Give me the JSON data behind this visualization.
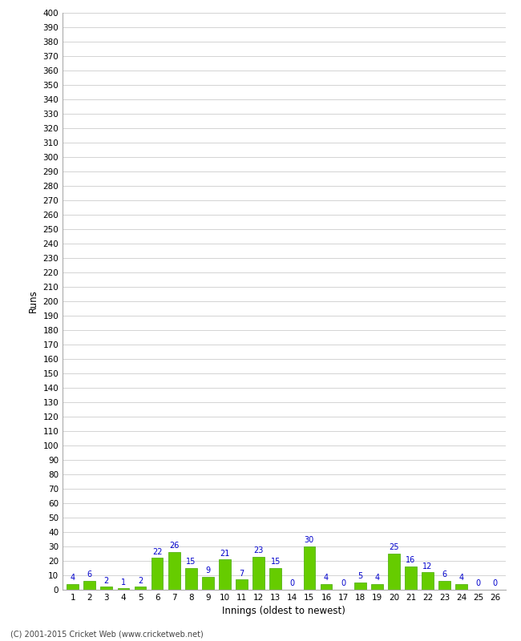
{
  "innings": [
    1,
    2,
    3,
    4,
    5,
    6,
    7,
    8,
    9,
    10,
    11,
    12,
    13,
    14,
    15,
    16,
    17,
    18,
    19,
    20,
    21,
    22,
    23,
    24,
    25,
    26
  ],
  "runs": [
    4,
    6,
    2,
    1,
    2,
    22,
    26,
    15,
    9,
    21,
    7,
    23,
    15,
    0,
    30,
    4,
    0,
    5,
    4,
    25,
    16,
    12,
    6,
    4,
    0,
    0
  ],
  "bar_color": "#66cc00",
  "bar_edge_color": "#44aa00",
  "label_color": "#0000cc",
  "ylabel": "Runs",
  "xlabel": "Innings (oldest to newest)",
  "ylim": [
    0,
    400
  ],
  "background_color": "#ffffff",
  "grid_color": "#cccccc",
  "footer": "(C) 2001-2015 Cricket Web (www.cricketweb.net)"
}
